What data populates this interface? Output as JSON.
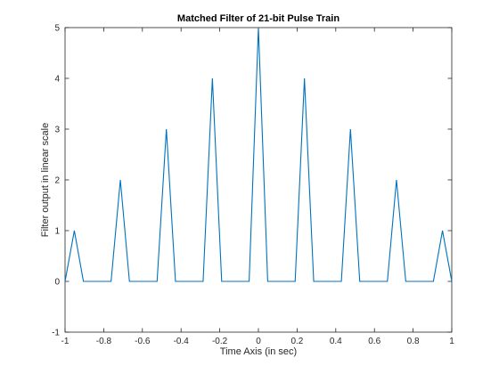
{
  "chart_data": {
    "type": "line",
    "title": "Matched Filter of 21-bit Pulse Train",
    "xlabel": "Time Axis (in sec)",
    "ylabel": "Filter output in linear scale",
    "xlim": [
      -1,
      1
    ],
    "ylim": [
      -1,
      5
    ],
    "x_ticks": [
      -1,
      -0.8,
      -0.6,
      -0.4,
      -0.2,
      0,
      0.2,
      0.4,
      0.6,
      0.8,
      1
    ],
    "x_tick_labels": [
      "-1",
      "-0.8",
      "-0.6",
      "-0.4",
      "-0.2",
      "0",
      "0.2",
      "0.4",
      "0.6",
      "0.8",
      "1"
    ],
    "y_ticks": [
      -1,
      0,
      1,
      2,
      3,
      4,
      5
    ],
    "y_tick_labels": [
      "-1",
      "0",
      "1",
      "2",
      "3",
      "4",
      "5"
    ],
    "grid": false,
    "legend": "none",
    "line_color": "#0072bd",
    "series": [
      {
        "x": [
          -1,
          -0.952,
          -0.905,
          -0.762,
          -0.714,
          -0.667,
          -0.524,
          -0.476,
          -0.429,
          -0.286,
          -0.238,
          -0.19,
          -0.048,
          0,
          0.048,
          0.19,
          0.238,
          0.286,
          0.429,
          0.476,
          0.524,
          0.667,
          0.714,
          0.762,
          0.905,
          0.952,
          1
        ],
        "y": [
          0,
          1,
          0,
          0,
          2,
          0,
          0,
          3,
          0,
          0,
          4,
          0,
          0,
          5,
          0,
          0,
          4,
          0,
          0,
          3,
          0,
          0,
          2,
          0,
          0,
          1,
          0
        ]
      }
    ]
  }
}
